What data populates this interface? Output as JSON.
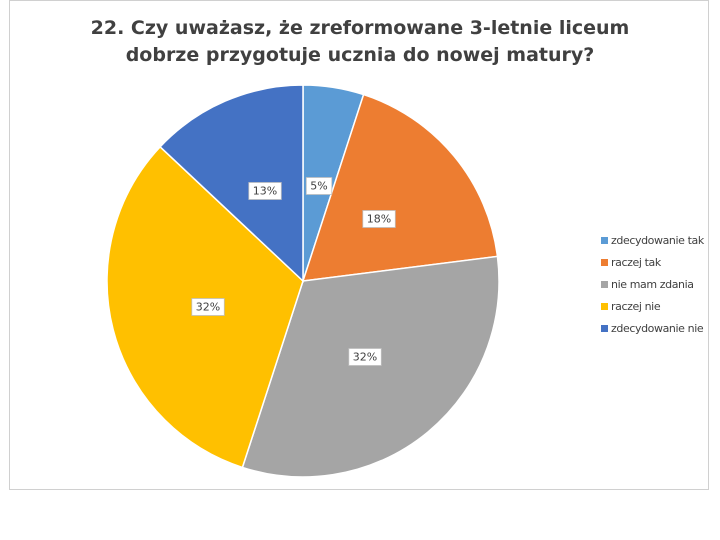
{
  "chart_data": {
    "type": "pie",
    "title": [
      "22. Czy uważasz, że zreformowane 3-letnie liceum",
      "dobrze przygotuje ucznia do nowej matury?"
    ],
    "slices": [
      {
        "label": "zdecydowanie tak",
        "value": 5,
        "display": "5%",
        "color": "#5B9BD5"
      },
      {
        "label": "raczej tak",
        "value": 18,
        "display": "18%",
        "color": "#ED7D31"
      },
      {
        "label": "nie mam zdania",
        "value": 32,
        "display": "32%",
        "color": "#A5A5A5"
      },
      {
        "label": "raczej nie",
        "value": 32,
        "display": "32%",
        "color": "#FFC000"
      },
      {
        "label": "zdecydowanie nie",
        "value": 13,
        "display": "13%",
        "color": "#4472C4"
      }
    ],
    "legend_position": "right",
    "start_angle": "12 o'clock",
    "direction": "clockwise"
  }
}
